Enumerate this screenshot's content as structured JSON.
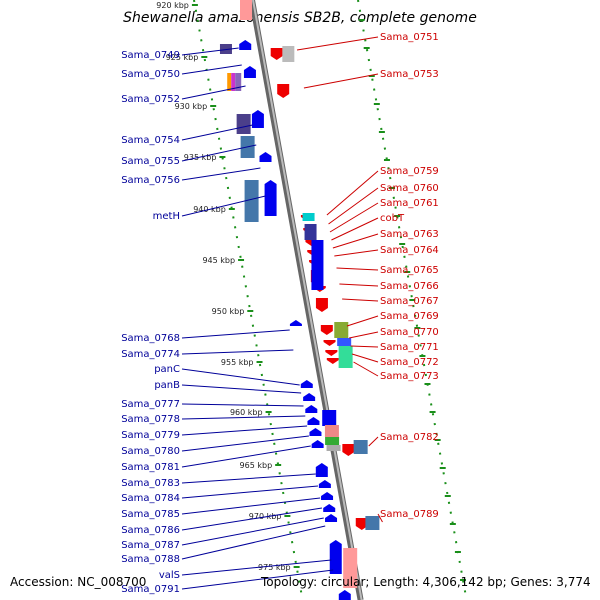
{
  "title": "Shewanella amazonensis SB2B, complete genome",
  "footer": {
    "accession": "Accession: NC_008700",
    "topology": "Topology: circular; Length: 4,306,142 bp; Genes: 3,774"
  },
  "colors": {
    "forward_gene": "#0000ee",
    "reverse_gene": "#ee0000",
    "left_label": "#000099",
    "right_label": "#cc0000",
    "backbone": "#999999",
    "tick": "#1a8f1a"
  },
  "ruler": {
    "ticks": [
      "920 kbp",
      "925 kbp",
      "930 kbp",
      "935 kbp",
      "940 kbp",
      "945 kbp",
      "950 kbp",
      "955 kbp",
      "960 kbp",
      "965 kbp",
      "970 kbp",
      "975 kbp"
    ]
  },
  "left_genes": [
    "Sama_0749",
    "Sama_0750",
    "Sama_0752",
    "Sama_0754",
    "Sama_0755",
    "Sama_0756",
    "metH",
    "Sama_0768",
    "Sama_0774",
    "panC",
    "panB",
    "Sama_0777",
    "Sama_0778",
    "Sama_0779",
    "Sama_0780",
    "Sama_0781",
    "Sama_0783",
    "Sama_0784",
    "Sama_0785",
    "Sama_0786",
    "Sama_0787",
    "Sama_0788",
    "valS",
    "Sama_0791"
  ],
  "right_genes": [
    "Sama_0751",
    "Sama_0753",
    "Sama_0759",
    "Sama_0760",
    "Sama_0761",
    "cobT",
    "Sama_0763",
    "Sama_0764",
    "Sama_0765",
    "Sama_0766",
    "Sama_0767",
    "Sama_0769",
    "Sama_0770",
    "Sama_0771",
    "Sama_0772",
    "Sama_0773",
    "Sama_0782",
    "Sama_0789"
  ]
}
